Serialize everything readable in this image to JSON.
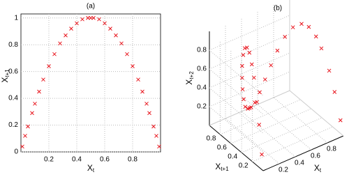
{
  "chart_data": [
    {
      "type": "scatter",
      "title": "(a)",
      "xlabel": [
        "X",
        "t"
      ],
      "ylabel": [
        "X",
        "t+1"
      ],
      "color": "#e8141c",
      "grid": true,
      "xlim": [
        0,
        1
      ],
      "ylim": [
        0,
        1.03
      ],
      "xticks": [
        0.2,
        0.4,
        0.6,
        0.8
      ],
      "yticks": [
        0,
        0.2,
        0.4,
        0.6,
        0.8,
        1
      ],
      "x": [
        0.01,
        0.03,
        0.05,
        0.08,
        0.1,
        0.13,
        0.16,
        0.2,
        0.24,
        0.28,
        0.32,
        0.36,
        0.4,
        0.44,
        0.48,
        0.5,
        0.52,
        0.56,
        0.6,
        0.64,
        0.68,
        0.72,
        0.76,
        0.8,
        0.84,
        0.87,
        0.9,
        0.92,
        0.95,
        0.97,
        0.99
      ],
      "values": [
        0.04,
        0.12,
        0.19,
        0.29,
        0.36,
        0.45,
        0.54,
        0.64,
        0.73,
        0.81,
        0.87,
        0.92,
        0.96,
        0.99,
        1,
        1,
        1,
        0.99,
        0.96,
        0.92,
        0.87,
        0.81,
        0.73,
        0.64,
        0.54,
        0.45,
        0.36,
        0.29,
        0.19,
        0.12,
        0.04
      ]
    },
    {
      "type": "scatter3d",
      "title": "(b)",
      "xlabel": [
        "X",
        "t"
      ],
      "ylabel": [
        "X",
        "t+1"
      ],
      "zlabel": [
        "X",
        "t+2"
      ],
      "color": "#e8141c",
      "grid": true,
      "xlim": [
        0,
        1
      ],
      "ylim": [
        0,
        1
      ],
      "zlim": [
        0,
        1
      ],
      "xticks": [
        0.2,
        0.4,
        0.6,
        0.8
      ],
      "yticks": [
        0.2,
        0.4,
        0.6,
        0.8
      ],
      "zticks": [
        0.2,
        0.4,
        0.6,
        0.8
      ],
      "x": [
        0.01,
        0.03,
        0.05,
        0.08,
        0.1,
        0.13,
        0.16,
        0.2,
        0.24,
        0.28,
        0.32,
        0.36,
        0.4,
        0.44,
        0.48,
        0.5,
        0.52,
        0.56,
        0.6,
        0.64,
        0.68,
        0.72,
        0.76,
        0.8,
        0.84,
        0.87,
        0.9,
        0.92,
        0.95,
        0.97,
        0.99
      ],
      "y": [
        0.04,
        0.12,
        0.19,
        0.29,
        0.36,
        0.45,
        0.54,
        0.64,
        0.73,
        0.81,
        0.87,
        0.92,
        0.96,
        0.99,
        1,
        1,
        1,
        0.99,
        0.96,
        0.92,
        0.87,
        0.81,
        0.73,
        0.64,
        0.54,
        0.45,
        0.36,
        0.29,
        0.19,
        0.12,
        0.04
      ],
      "values": [
        0.15,
        0.42,
        0.62,
        0.82,
        0.92,
        0.99,
        0.99,
        0.92,
        0.79,
        0.62,
        0.45,
        0.29,
        0.15,
        0.04,
        0,
        0,
        0,
        0.04,
        0.15,
        0.29,
        0.45,
        0.62,
        0.79,
        0.92,
        0.99,
        0.99,
        0.92,
        0.82,
        0.62,
        0.42,
        0.15
      ]
    }
  ]
}
